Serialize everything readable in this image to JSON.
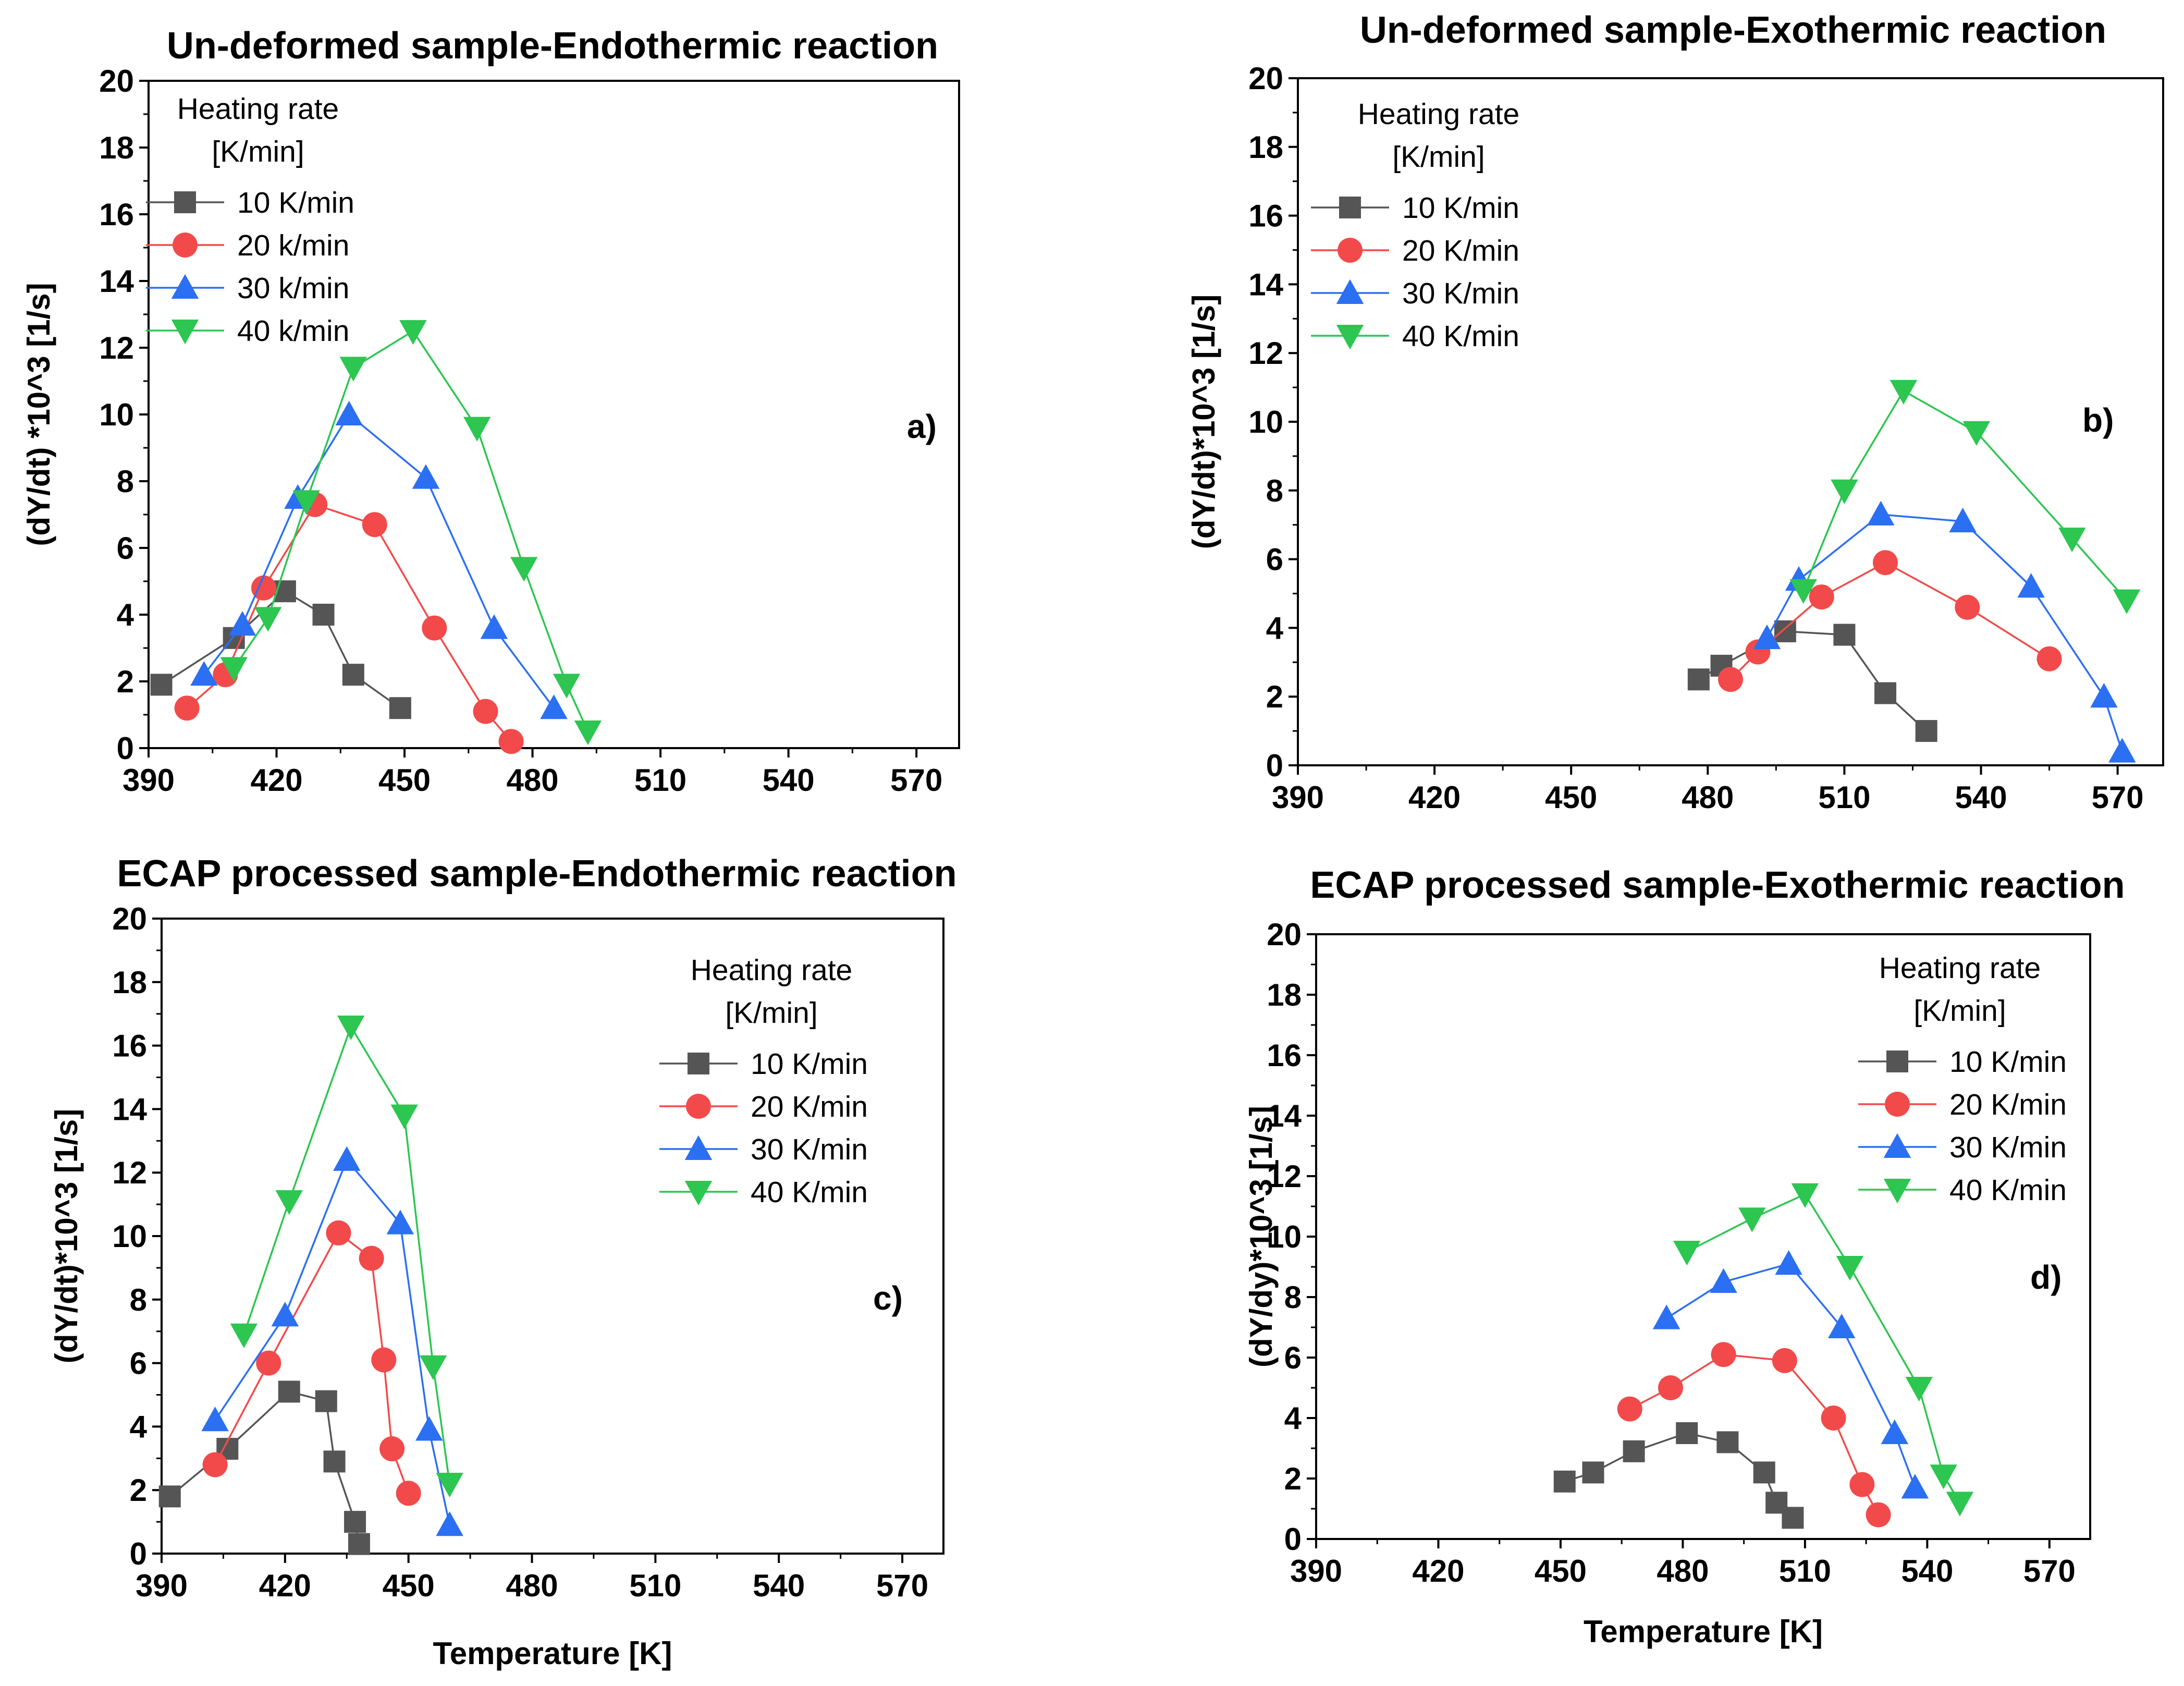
{
  "colors": {
    "10": "#555555",
    "20": "#f24a4a",
    "30": "#2b6ff2",
    "40": "#2cc651"
  },
  "chart_data": [
    {
      "type": "line",
      "id": "a",
      "title": "Un-deformed sample-Endothermic reaction",
      "xlabel": "",
      "ylabel": "(dY/dt) *10^3 [1/s]",
      "xlim": [
        390,
        580
      ],
      "ylim": [
        0,
        20
      ],
      "xticks": [
        390,
        420,
        450,
        480,
        510,
        540,
        570
      ],
      "yticks": [
        0,
        2,
        4,
        6,
        8,
        10,
        12,
        14,
        16,
        18,
        20
      ],
      "panel_label": "a)",
      "legend_title": [
        "Heating rate",
        "[K/min]"
      ],
      "legend_position": "top-left",
      "series": [
        {
          "name": "10 K/min",
          "marker": "square",
          "color_key": "10",
          "x": [
            393,
            410,
            422,
            431,
            438,
            449
          ],
          "y": [
            1.9,
            3.3,
            4.7,
            4.0,
            2.2,
            1.2
          ]
        },
        {
          "name": "20 k/min",
          "marker": "circle",
          "color_key": "20",
          "x": [
            399,
            408,
            417,
            429,
            443,
            457,
            469,
            475
          ],
          "y": [
            1.2,
            2.2,
            4.8,
            7.3,
            6.7,
            3.6,
            1.1,
            0.2
          ]
        },
        {
          "name": "30 k/min",
          "marker": "triangle-up",
          "color_key": "30",
          "x": [
            403,
            412,
            425,
            437,
            455,
            471,
            485
          ],
          "y": [
            2.2,
            3.7,
            7.5,
            10.0,
            8.1,
            3.6,
            1.2
          ]
        },
        {
          "name": "40 k/min",
          "marker": "triangle-down",
          "color_key": "40",
          "x": [
            410,
            418,
            427,
            438,
            452,
            467,
            478,
            488,
            493
          ],
          "y": [
            2.4,
            3.9,
            7.4,
            11.4,
            12.5,
            9.6,
            5.4,
            1.9,
            0.5
          ]
        }
      ]
    },
    {
      "type": "line",
      "id": "b",
      "title": "Un-deformed sample-Exothermic reaction",
      "xlabel": "",
      "ylabel": "(dY/dt)*10^3 [1/s]",
      "xlim": [
        390,
        580
      ],
      "ylim": [
        0,
        20
      ],
      "xticks": [
        390,
        420,
        450,
        480,
        510,
        540,
        570
      ],
      "yticks": [
        0,
        2,
        4,
        6,
        8,
        10,
        12,
        14,
        16,
        18,
        20
      ],
      "panel_label": "b)",
      "legend_title": [
        "Heating rate",
        "[K/min]"
      ],
      "legend_position": "top-left",
      "series": [
        {
          "name": "10 K/min",
          "marker": "square",
          "color_key": "10",
          "x": [
            478,
            483,
            497,
            510,
            519,
            528
          ],
          "y": [
            2.5,
            2.9,
            3.9,
            3.8,
            2.1,
            1.0
          ]
        },
        {
          "name": "20 K/min",
          "marker": "circle",
          "color_key": "20",
          "x": [
            485,
            491,
            505,
            519,
            537,
            555
          ],
          "y": [
            2.5,
            3.3,
            4.9,
            5.9,
            4.6,
            3.1
          ]
        },
        {
          "name": "30 K/min",
          "marker": "triangle-up",
          "color_key": "30",
          "x": [
            493,
            500,
            518,
            536,
            551,
            567,
            571
          ],
          "y": [
            3.7,
            5.4,
            7.3,
            7.1,
            5.2,
            2.0,
            0.4
          ]
        },
        {
          "name": "40 K/min",
          "marker": "triangle-down",
          "color_key": "40",
          "x": [
            501,
            510,
            523,
            539,
            560,
            572
          ],
          "y": [
            5.1,
            8.0,
            10.9,
            9.7,
            6.6,
            4.8
          ]
        }
      ]
    },
    {
      "type": "line",
      "id": "c",
      "title": "ECAP processed sample-Endothermic reaction",
      "xlabel": "Temperature [K]",
      "ylabel": "(dY/dt)*10^3 [1/s]",
      "xlim": [
        390,
        580
      ],
      "ylim": [
        0,
        20
      ],
      "xticks": [
        390,
        420,
        450,
        480,
        510,
        540,
        570
      ],
      "yticks": [
        0,
        2,
        4,
        6,
        8,
        10,
        12,
        14,
        16,
        18,
        20
      ],
      "panel_label": "c)",
      "legend_title": [
        "Heating rate",
        "[K/min]"
      ],
      "legend_position": "top-right",
      "series": [
        {
          "name": "10 K/min",
          "marker": "square",
          "color_key": "10",
          "x": [
            392,
            406,
            421,
            430,
            432,
            437,
            438
          ],
          "y": [
            1.8,
            3.3,
            5.1,
            4.8,
            2.9,
            1.0,
            0.3
          ]
        },
        {
          "name": "20 K/min",
          "marker": "circle",
          "color_key": "20",
          "x": [
            403,
            416,
            433,
            441,
            444,
            446,
            450
          ],
          "y": [
            2.8,
            6.0,
            10.1,
            9.3,
            6.1,
            3.3,
            1.9
          ]
        },
        {
          "name": "30 K/min",
          "marker": "triangle-up",
          "color_key": "30",
          "x": [
            403,
            420,
            435,
            448,
            455,
            460
          ],
          "y": [
            4.2,
            7.5,
            12.4,
            10.4,
            3.9,
            0.9
          ]
        },
        {
          "name": "40 K/min",
          "marker": "triangle-down",
          "color_key": "40",
          "x": [
            410,
            421,
            436,
            449,
            456,
            460
          ],
          "y": [
            6.9,
            11.1,
            16.6,
            13.8,
            5.9,
            2.2
          ]
        }
      ]
    },
    {
      "type": "line",
      "id": "d",
      "title": "ECAP processed sample-Exothermic reaction",
      "xlabel": "Temperature [K]",
      "ylabel": "(dY/dy)*10^3 [1/s]",
      "xlim": [
        390,
        580
      ],
      "ylim": [
        0,
        20
      ],
      "xticks": [
        390,
        420,
        450,
        480,
        510,
        540,
        570
      ],
      "yticks": [
        0,
        2,
        4,
        6,
        8,
        10,
        12,
        14,
        16,
        18,
        20
      ],
      "panel_label": "d)",
      "legend_title": [
        "Heating rate",
        "[K/min]"
      ],
      "legend_position": "top-right",
      "series": [
        {
          "name": "10 K/min",
          "marker": "square",
          "color_key": "10",
          "x": [
            451,
            458,
            468,
            481,
            491,
            500,
            503,
            507
          ],
          "y": [
            1.9,
            2.2,
            2.9,
            3.5,
            3.2,
            2.2,
            1.2,
            0.7
          ]
        },
        {
          "name": "20 K/min",
          "marker": "circle",
          "color_key": "20",
          "x": [
            467,
            477,
            490,
            505,
            517,
            524,
            528
          ],
          "y": [
            4.3,
            5.0,
            6.1,
            5.9,
            4.0,
            1.8,
            0.8
          ]
        },
        {
          "name": "30 K/min",
          "marker": "triangle-up",
          "color_key": "30",
          "x": [
            476,
            490,
            506,
            519,
            532,
            537
          ],
          "y": [
            7.3,
            8.5,
            9.1,
            7.0,
            3.5,
            1.7
          ]
        },
        {
          "name": "40 K/min",
          "marker": "triangle-down",
          "color_key": "40",
          "x": [
            481,
            497,
            510,
            521,
            538,
            544,
            548
          ],
          "y": [
            9.5,
            10.6,
            11.4,
            9.0,
            5.0,
            2.1,
            1.2
          ]
        }
      ]
    }
  ]
}
